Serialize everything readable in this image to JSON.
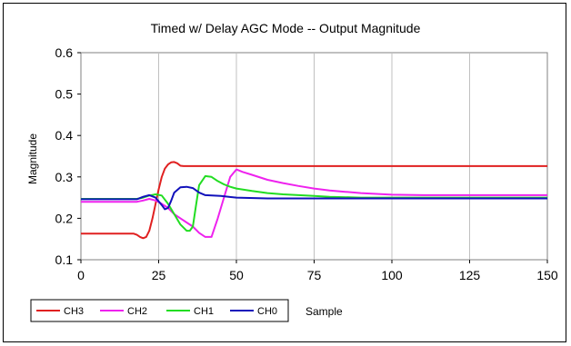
{
  "chart_data": {
    "type": "line",
    "title": "Timed w/ Delay AGC Mode -- Output Magnitude",
    "xlabel": "Sample",
    "ylabel": "Magnitude",
    "xlim": [
      0,
      150
    ],
    "ylim": [
      0.1,
      0.6
    ],
    "xticks": [
      0,
      25,
      50,
      75,
      100,
      125,
      150
    ],
    "yticks": [
      0.1,
      0.2,
      0.3,
      0.4,
      0.5,
      0.6
    ],
    "xtick_labels": [
      "0",
      "25",
      "50",
      "75",
      "100",
      "125",
      "150"
    ],
    "ytick_labels": [
      "0.1",
      "0.2",
      "0.3",
      "0.4",
      "0.5",
      "0.6"
    ],
    "grid": "vertical",
    "legend_position": "bottom-left",
    "series": [
      {
        "name": "CH3",
        "color": "#e02020",
        "x": [
          0,
          17,
          18,
          19,
          20,
          21,
          22,
          23,
          24,
          25,
          26,
          27,
          28,
          29,
          30,
          31,
          32,
          33,
          150
        ],
        "y": [
          0.163,
          0.163,
          0.16,
          0.155,
          0.152,
          0.155,
          0.17,
          0.2,
          0.235,
          0.27,
          0.3,
          0.32,
          0.33,
          0.335,
          0.336,
          0.333,
          0.327,
          0.326,
          0.326
        ]
      },
      {
        "name": "CH2",
        "color": "#ee22ee",
        "x": [
          0,
          10,
          18,
          20,
          22,
          24,
          26,
          28,
          30,
          32,
          34,
          36,
          38,
          40,
          42,
          44,
          46,
          48,
          50,
          52,
          55,
          60,
          65,
          70,
          75,
          80,
          85,
          90,
          95,
          100,
          110,
          150
        ],
        "y": [
          0.24,
          0.24,
          0.24,
          0.243,
          0.247,
          0.243,
          0.235,
          0.225,
          0.21,
          0.2,
          0.19,
          0.18,
          0.165,
          0.155,
          0.155,
          0.2,
          0.25,
          0.3,
          0.318,
          0.312,
          0.305,
          0.293,
          0.285,
          0.278,
          0.272,
          0.267,
          0.264,
          0.261,
          0.259,
          0.257,
          0.256,
          0.256
        ]
      },
      {
        "name": "CH1",
        "color": "#22dd22",
        "x": [
          0,
          18,
          20,
          22,
          24,
          26,
          28,
          30,
          32,
          34,
          35,
          36,
          37,
          38,
          40,
          42,
          44,
          46,
          48,
          50,
          55,
          60,
          65,
          70,
          75,
          80,
          90,
          150
        ],
        "y": [
          0.247,
          0.247,
          0.25,
          0.255,
          0.258,
          0.255,
          0.235,
          0.21,
          0.185,
          0.17,
          0.17,
          0.18,
          0.23,
          0.28,
          0.302,
          0.3,
          0.29,
          0.282,
          0.276,
          0.272,
          0.266,
          0.261,
          0.258,
          0.256,
          0.254,
          0.252,
          0.25,
          0.25
        ]
      },
      {
        "name": "CH0",
        "color": "#1111bb",
        "x": [
          0,
          18,
          20,
          22,
          24,
          26,
          27,
          28,
          29,
          30,
          32,
          34,
          36,
          38,
          40,
          45,
          50,
          60,
          150
        ],
        "y": [
          0.246,
          0.246,
          0.252,
          0.256,
          0.25,
          0.232,
          0.222,
          0.225,
          0.242,
          0.262,
          0.275,
          0.276,
          0.273,
          0.262,
          0.256,
          0.254,
          0.25,
          0.248,
          0.248
        ]
      }
    ]
  }
}
